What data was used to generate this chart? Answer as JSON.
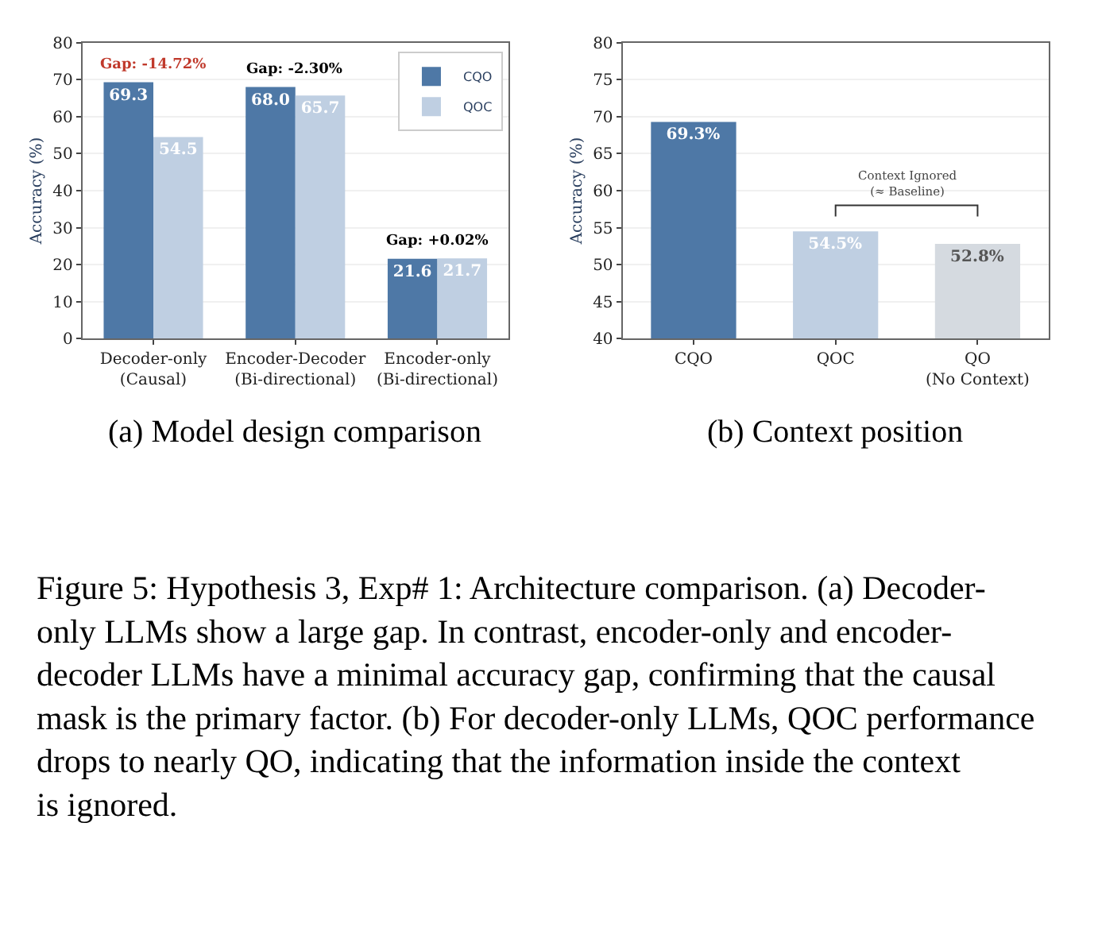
{
  "chart_data": [
    {
      "type": "bar",
      "ylabel": "Accuracy (%)",
      "categories": [
        "Decoder-only\n(Causal)",
        "Encoder-Decoder\n(Bi-directional)",
        "Encoder-only\n(Bi-directional)"
      ],
      "series": [
        {
          "name": "CQO",
          "color": "#4e78a6",
          "values": [
            69.3,
            68.0,
            21.6
          ],
          "value_labels": [
            "69.3",
            "68.0",
            "21.6"
          ]
        },
        {
          "name": "QOC",
          "color": "#bfcfe2",
          "values": [
            54.5,
            65.7,
            21.7
          ],
          "value_labels": [
            "54.5",
            "65.7",
            "21.7"
          ]
        }
      ],
      "ylim": [
        0,
        80
      ],
      "yticks": [
        0,
        10,
        20,
        30,
        40,
        50,
        60,
        70,
        80
      ],
      "grid": "y",
      "legend": "top right",
      "annotations": [
        "(a) Model design comparison",
        "Figure 5: Hypothesis 3, Exp# 1: Architecture comparison. (a) Decoder-only LLMs show a large gap. In contrast, encoder-only and encoder-decoder LLMs have a minimal accuracy gap, confirming that the causal mask is the primary factor. (b) For decoder-only LLMs, QOC performance drops to nearly QO, indicating that the information inside the context is ignored.",
        "Gap: -14.72%",
        "Gap: -2.30%",
        "Gap: +0.02%"
      ]
    },
    {
      "type": "bar",
      "ylabel": "Accuracy (%)",
      "categories": [
        "CQO",
        "QOC",
        "QO\n(No Context)"
      ],
      "values": [
        69.3,
        54.5,
        52.8
      ],
      "colors": [
        "#4e78a6",
        "#bfcfe2",
        "#d5dae0"
      ],
      "value_labels": [
        "69.3%",
        "54.5%",
        "52.8%"
      ],
      "ylim": [
        40,
        80
      ],
      "yticks": [
        40,
        45,
        50,
        55,
        60,
        65,
        70,
        75,
        80
      ],
      "grid": "y",
      "annotations": [
        "(b) Context position",
        "Context Ignored\n(≈ Baseline)"
      ]
    }
  ]
}
